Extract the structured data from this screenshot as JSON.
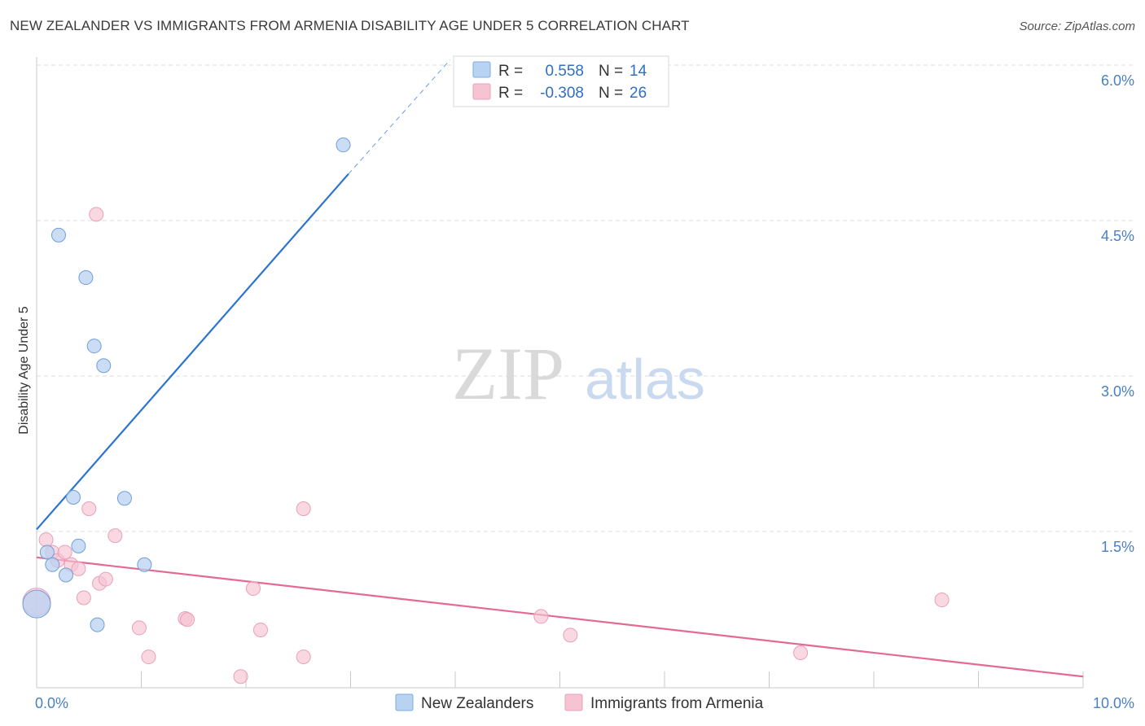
{
  "header": {
    "title": "NEW ZEALANDER VS IMMIGRANTS FROM ARMENIA DISABILITY AGE UNDER 5 CORRELATION CHART",
    "source": "Source: ZipAtlas.com"
  },
  "watermark": {
    "zip": "ZIP",
    "atlas": "atlas"
  },
  "colors": {
    "blue": "#2d74d0",
    "blue_fill": "#b8d2f2",
    "pink": "#e46a94",
    "pink_fill": "#f6c3d3",
    "tick": "#4a7fc1",
    "grid": "#dcdcdc"
  },
  "chart_data": {
    "type": "scatter",
    "title": "NEW ZEALANDER VS IMMIGRANTS FROM ARMENIA DISABILITY AGE UNDER 5 CORRELATION CHART",
    "xlabel": "",
    "ylabel": "Disability Age Under 5",
    "xlim": [
      0,
      10
    ],
    "ylim": [
      0,
      6.15
    ],
    "x_tick_labels": [
      "0.0%",
      "10.0%"
    ],
    "y_ticks": [
      1.5,
      3.0,
      4.5,
      6.0
    ],
    "y_tick_labels": [
      "1.5%",
      "3.0%",
      "4.5%",
      "6.0%"
    ],
    "grid": true,
    "legend": {
      "placement": "top-center",
      "rows": [
        {
          "r_label": "R =",
          "r_value": "0.558",
          "n_label": "N =",
          "n_value": "14"
        },
        {
          "r_label": "R =",
          "r_value": "-0.308",
          "n_label": "N =",
          "n_value": "26"
        }
      ]
    },
    "series": [
      {
        "name": "New Zealanders",
        "color": "#2d74d0",
        "r": 0.558,
        "n": 14,
        "trend": {
          "x0": 0.0,
          "y0": 1.52,
          "x1": 2.98,
          "y1": 4.95,
          "dash_to_x": 3.95,
          "dash_to_y": 6.05
        },
        "points": [
          {
            "x": 0.0,
            "y": 0.8,
            "big": true
          },
          {
            "x": 0.1,
            "y": 1.3
          },
          {
            "x": 0.15,
            "y": 1.18
          },
          {
            "x": 0.21,
            "y": 4.36
          },
          {
            "x": 0.28,
            "y": 1.08
          },
          {
            "x": 0.35,
            "y": 1.83
          },
          {
            "x": 0.4,
            "y": 1.36
          },
          {
            "x": 0.47,
            "y": 3.95
          },
          {
            "x": 0.55,
            "y": 3.29
          },
          {
            "x": 0.58,
            "y": 0.6
          },
          {
            "x": 0.64,
            "y": 3.1
          },
          {
            "x": 0.84,
            "y": 1.82
          },
          {
            "x": 1.03,
            "y": 1.18
          },
          {
            "x": 2.93,
            "y": 5.23
          }
        ]
      },
      {
        "name": "Immigrants from Armenia",
        "color": "#e46a94",
        "r": -0.308,
        "n": 26,
        "trend": {
          "x0": 0.0,
          "y0": 1.25,
          "x1": 10.0,
          "y1": 0.1
        },
        "points": [
          {
            "x": 0.0,
            "y": 0.82,
            "big": true
          },
          {
            "x": 0.09,
            "y": 1.42
          },
          {
            "x": 0.15,
            "y": 1.3
          },
          {
            "x": 0.2,
            "y": 1.22
          },
          {
            "x": 0.27,
            "y": 1.3
          },
          {
            "x": 0.33,
            "y": 1.18
          },
          {
            "x": 0.4,
            "y": 1.14
          },
          {
            "x": 0.45,
            "y": 0.86
          },
          {
            "x": 0.5,
            "y": 1.72
          },
          {
            "x": 0.6,
            "y": 1.0
          },
          {
            "x": 0.66,
            "y": 1.04
          },
          {
            "x": 0.75,
            "y": 1.46
          },
          {
            "x": 0.98,
            "y": 0.57
          },
          {
            "x": 1.07,
            "y": 0.29
          },
          {
            "x": 1.42,
            "y": 0.66
          },
          {
            "x": 1.44,
            "y": 0.65
          },
          {
            "x": 1.95,
            "y": 0.1
          },
          {
            "x": 2.07,
            "y": 0.95
          },
          {
            "x": 2.14,
            "y": 0.55
          },
          {
            "x": 2.55,
            "y": 0.29
          },
          {
            "x": 2.55,
            "y": 1.72
          },
          {
            "x": 0.57,
            "y": 4.56
          },
          {
            "x": 4.82,
            "y": 0.68
          },
          {
            "x": 5.1,
            "y": 0.5
          },
          {
            "x": 7.3,
            "y": 0.33
          },
          {
            "x": 8.65,
            "y": 0.84
          }
        ]
      }
    ]
  }
}
